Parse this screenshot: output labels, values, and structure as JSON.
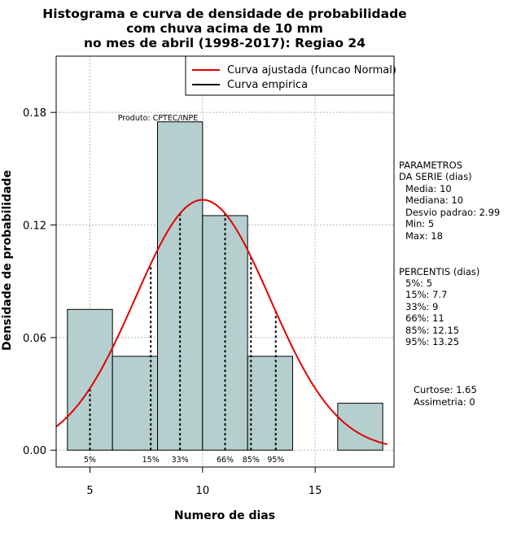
{
  "chart_data": {
    "type": "bar",
    "title_lines": [
      "Histograma e curva de densidade de probabilidade",
      "com chuva acima de 10 mm",
      "no mes de abril (1998-2017): Regiao 24"
    ],
    "xlabel": "Numero de dias",
    "ylabel": "Densidade de probabilidade",
    "xlim": [
      3.5,
      18.5
    ],
    "ylim": [
      -0.009,
      0.21
    ],
    "x_ticks": [
      5,
      10,
      15
    ],
    "x_tick_labels": [
      "5",
      "10",
      "15"
    ],
    "y_ticks": [
      0.0,
      0.06,
      0.12,
      0.18
    ],
    "y_tick_labels": [
      "0.00",
      "0.06",
      "0.12",
      "0.18"
    ],
    "grid": true,
    "bins": [
      {
        "x0": 4,
        "x1": 6,
        "density": 0.075
      },
      {
        "x0": 6,
        "x1": 8,
        "density": 0.05
      },
      {
        "x0": 8,
        "x1": 10,
        "density": 0.175
      },
      {
        "x0": 10,
        "x1": 12,
        "density": 0.125
      },
      {
        "x0": 12,
        "x1": 14,
        "density": 0.05
      },
      {
        "x0": 14,
        "x1": 16,
        "density": 0.0
      },
      {
        "x0": 16,
        "x1": 18,
        "density": 0.025
      }
    ],
    "fitted_curve": {
      "name": "Curva ajustada (funcao Normal)",
      "distribution": "normal",
      "mean": 10,
      "sd": 2.99,
      "x_range": [
        3.5,
        18.2
      ],
      "color": "#e00000"
    },
    "empirical_curve": {
      "name": "Curva empirica",
      "color": "#000000"
    },
    "percentile_markers": [
      {
        "label": "5%",
        "x": 5
      },
      {
        "label": "15%",
        "x": 7.7
      },
      {
        "label": "33%",
        "x": 9
      },
      {
        "label": "66%",
        "x": 11
      },
      {
        "label": "85%",
        "x": 12.15
      },
      {
        "label": "95%",
        "x": 13.25
      }
    ],
    "annotation": "Produto: CPTEC/INPE",
    "legend_position": "top-right",
    "bar_color": "#b5cfcf"
  },
  "side_panel": {
    "parametros_title": [
      "PARAMETROS",
      "DA SERIE (dias)"
    ],
    "parametros": [
      "Media: 10",
      "Mediana: 10",
      "Desvio padrao: 2.99",
      "Min: 5",
      "Max: 18"
    ],
    "percentis_title": "PERCENTIS (dias)",
    "percentis": [
      "5%: 5",
      "15%: 7.7",
      "33%: 9",
      "66%: 11",
      "85%: 12.15",
      "95%: 13.25"
    ],
    "stats": [
      "Curtose: 1.65",
      "Assimetria: 0"
    ]
  }
}
